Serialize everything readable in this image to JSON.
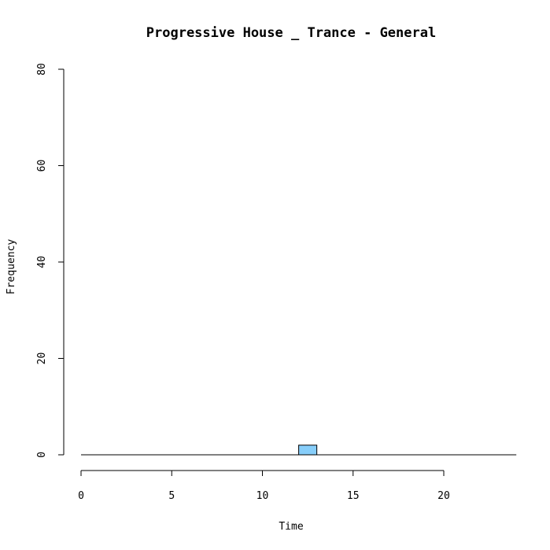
{
  "chart_data": {
    "type": "bar",
    "title": "Progressive House _ Trance - General",
    "xlabel": "Time",
    "ylabel": "Frequency",
    "xlim": [
      0,
      24
    ],
    "ylim": [
      0,
      80
    ],
    "x_ticks": [
      0,
      5,
      10,
      15,
      20
    ],
    "y_ticks": [
      0,
      20,
      40,
      60,
      80
    ],
    "bin_width": 1,
    "bins": [
      {
        "start": 0,
        "count": 0
      },
      {
        "start": 1,
        "count": 0
      },
      {
        "start": 2,
        "count": 0
      },
      {
        "start": 3,
        "count": 0
      },
      {
        "start": 4,
        "count": 0
      },
      {
        "start": 5,
        "count": 0
      },
      {
        "start": 6,
        "count": 0
      },
      {
        "start": 7,
        "count": 0
      },
      {
        "start": 8,
        "count": 0
      },
      {
        "start": 9,
        "count": 0
      },
      {
        "start": 10,
        "count": 0
      },
      {
        "start": 11,
        "count": 0
      },
      {
        "start": 12,
        "count": 2
      },
      {
        "start": 13,
        "count": 0
      },
      {
        "start": 14,
        "count": 0
      },
      {
        "start": 15,
        "count": 0
      },
      {
        "start": 16,
        "count": 0
      },
      {
        "start": 17,
        "count": 0
      },
      {
        "start": 18,
        "count": 0
      },
      {
        "start": 19,
        "count": 0
      },
      {
        "start": 20,
        "count": 0
      },
      {
        "start": 21,
        "count": 0
      },
      {
        "start": 22,
        "count": 0
      },
      {
        "start": 23,
        "count": 0
      }
    ],
    "bar_color": "#87CEFA",
    "grid": false,
    "legend": "none"
  }
}
